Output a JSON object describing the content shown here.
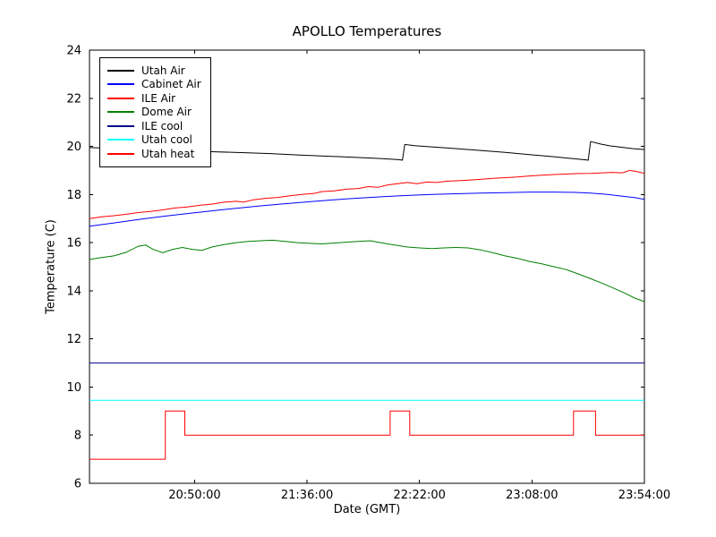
{
  "chart_data": {
    "type": "line",
    "title": "APOLLO Temperatures",
    "xlabel": "Date (GMT)",
    "ylabel": "Temperature (C)",
    "ylim": [
      6,
      24
    ],
    "yticks": [
      6,
      8,
      10,
      12,
      14,
      16,
      18,
      20,
      22,
      24
    ],
    "xlim": [
      0,
      227
    ],
    "x_axis_note": "x values are minutes from the left edge of the axes; tick labels show GMT time",
    "xticks": [
      {
        "t": 43,
        "label": "20:50:00"
      },
      {
        "t": 89,
        "label": "21:36:00"
      },
      {
        "t": 135,
        "label": "22:22:00"
      },
      {
        "t": 181,
        "label": "23:08:00"
      },
      {
        "t": 227,
        "label": "23:54:00"
      }
    ],
    "grid": false,
    "legend_position": "upper left",
    "series": [
      {
        "name": "Utah Air",
        "color": "#000000",
        "points": [
          [
            0,
            19.95
          ],
          [
            10,
            19.92
          ],
          [
            20,
            19.89
          ],
          [
            30,
            19.86
          ],
          [
            40,
            19.82
          ],
          [
            50,
            19.78
          ],
          [
            62,
            19.74
          ],
          [
            74,
            19.7
          ],
          [
            86,
            19.64
          ],
          [
            98,
            19.59
          ],
          [
            108,
            19.55
          ],
          [
            118,
            19.5
          ],
          [
            126,
            19.45
          ],
          [
            128,
            19.43
          ],
          [
            129,
            20.08
          ],
          [
            133,
            20.03
          ],
          [
            138,
            19.99
          ],
          [
            144,
            19.95
          ],
          [
            152,
            19.89
          ],
          [
            160,
            19.83
          ],
          [
            170,
            19.75
          ],
          [
            180,
            19.66
          ],
          [
            190,
            19.57
          ],
          [
            198,
            19.49
          ],
          [
            204,
            19.43
          ],
          [
            205,
            20.2
          ],
          [
            209,
            20.1
          ],
          [
            213,
            20.02
          ],
          [
            218,
            19.96
          ],
          [
            222,
            19.91
          ],
          [
            227,
            19.87
          ]
        ]
      },
      {
        "name": "Cabinet Air",
        "color": "#0000ff",
        "points": [
          [
            0,
            16.68
          ],
          [
            10,
            16.82
          ],
          [
            20,
            16.96
          ],
          [
            30,
            17.09
          ],
          [
            40,
            17.21
          ],
          [
            50,
            17.32
          ],
          [
            60,
            17.43
          ],
          [
            70,
            17.53
          ],
          [
            80,
            17.62
          ],
          [
            90,
            17.7
          ],
          [
            100,
            17.78
          ],
          [
            110,
            17.85
          ],
          [
            120,
            17.91
          ],
          [
            130,
            17.96
          ],
          [
            140,
            18.0
          ],
          [
            150,
            18.03
          ],
          [
            160,
            18.06
          ],
          [
            170,
            18.08
          ],
          [
            180,
            18.1
          ],
          [
            190,
            18.1
          ],
          [
            198,
            18.09
          ],
          [
            205,
            18.06
          ],
          [
            212,
            18.0
          ],
          [
            218,
            17.93
          ],
          [
            223,
            17.87
          ],
          [
            227,
            17.8
          ]
        ]
      },
      {
        "name": "ILE Air",
        "color": "#ff0000",
        "points": [
          [
            0,
            17.0
          ],
          [
            5,
            17.07
          ],
          [
            10,
            17.12
          ],
          [
            15,
            17.18
          ],
          [
            20,
            17.25
          ],
          [
            25,
            17.3
          ],
          [
            30,
            17.36
          ],
          [
            35,
            17.44
          ],
          [
            40,
            17.48
          ],
          [
            45,
            17.55
          ],
          [
            50,
            17.6
          ],
          [
            55,
            17.68
          ],
          [
            60,
            17.72
          ],
          [
            63,
            17.68
          ],
          [
            67,
            17.78
          ],
          [
            72,
            17.84
          ],
          [
            77,
            17.88
          ],
          [
            82,
            17.95
          ],
          [
            87,
            18.0
          ],
          [
            92,
            18.05
          ],
          [
            95,
            18.12
          ],
          [
            100,
            18.15
          ],
          [
            105,
            18.22
          ],
          [
            110,
            18.25
          ],
          [
            114,
            18.33
          ],
          [
            118,
            18.3
          ],
          [
            122,
            18.4
          ],
          [
            126,
            18.45
          ],
          [
            130,
            18.5
          ],
          [
            134,
            18.45
          ],
          [
            138,
            18.52
          ],
          [
            142,
            18.5
          ],
          [
            146,
            18.55
          ],
          [
            150,
            18.57
          ],
          [
            155,
            18.6
          ],
          [
            160,
            18.63
          ],
          [
            165,
            18.67
          ],
          [
            170,
            18.7
          ],
          [
            175,
            18.73
          ],
          [
            180,
            18.77
          ],
          [
            185,
            18.8
          ],
          [
            190,
            18.83
          ],
          [
            195,
            18.85
          ],
          [
            200,
            18.87
          ],
          [
            205,
            18.88
          ],
          [
            210,
            18.9
          ],
          [
            214,
            18.92
          ],
          [
            218,
            18.9
          ],
          [
            221,
            19.0
          ],
          [
            224,
            18.95
          ],
          [
            227,
            18.88
          ]
        ]
      },
      {
        "name": "Dome Air",
        "color": "#008000",
        "points": [
          [
            0,
            15.3
          ],
          [
            5,
            15.38
          ],
          [
            10,
            15.45
          ],
          [
            15,
            15.6
          ],
          [
            20,
            15.85
          ],
          [
            23,
            15.9
          ],
          [
            26,
            15.72
          ],
          [
            30,
            15.58
          ],
          [
            34,
            15.72
          ],
          [
            38,
            15.8
          ],
          [
            42,
            15.72
          ],
          [
            46,
            15.68
          ],
          [
            50,
            15.82
          ],
          [
            55,
            15.92
          ],
          [
            60,
            16.0
          ],
          [
            65,
            16.05
          ],
          [
            70,
            16.08
          ],
          [
            75,
            16.1
          ],
          [
            80,
            16.05
          ],
          [
            85,
            16.0
          ],
          [
            90,
            15.97
          ],
          [
            95,
            15.95
          ],
          [
            100,
            15.98
          ],
          [
            105,
            16.02
          ],
          [
            110,
            16.05
          ],
          [
            115,
            16.08
          ],
          [
            118,
            16.02
          ],
          [
            122,
            15.95
          ],
          [
            126,
            15.88
          ],
          [
            130,
            15.82
          ],
          [
            135,
            15.78
          ],
          [
            140,
            15.75
          ],
          [
            145,
            15.78
          ],
          [
            150,
            15.8
          ],
          [
            155,
            15.78
          ],
          [
            160,
            15.7
          ],
          [
            165,
            15.58
          ],
          [
            170,
            15.45
          ],
          [
            175,
            15.35
          ],
          [
            180,
            15.22
          ],
          [
            185,
            15.12
          ],
          [
            190,
            15.0
          ],
          [
            195,
            14.88
          ],
          [
            200,
            14.7
          ],
          [
            205,
            14.5
          ],
          [
            210,
            14.3
          ],
          [
            215,
            14.08
          ],
          [
            219,
            13.9
          ],
          [
            223,
            13.7
          ],
          [
            227,
            13.55
          ]
        ]
      },
      {
        "name": "ILE cool",
        "color": "#00008b",
        "points": [
          [
            0,
            11.0
          ],
          [
            227,
            11.0
          ]
        ]
      },
      {
        "name": "Utah cool",
        "color": "#00ffff",
        "points": [
          [
            0,
            9.45
          ],
          [
            227,
            9.45
          ]
        ]
      },
      {
        "name": "Utah heat",
        "color": "#ff0000",
        "points": [
          [
            0,
            7.0
          ],
          [
            31,
            7.0
          ],
          [
            31,
            9.0
          ],
          [
            39,
            9.0
          ],
          [
            39,
            8.0
          ],
          [
            123,
            8.0
          ],
          [
            123,
            9.0
          ],
          [
            131,
            9.0
          ],
          [
            131,
            8.0
          ],
          [
            198,
            8.0
          ],
          [
            198,
            9.0
          ],
          [
            207,
            9.0
          ],
          [
            207,
            8.0
          ],
          [
            227,
            8.0
          ]
        ]
      }
    ]
  }
}
